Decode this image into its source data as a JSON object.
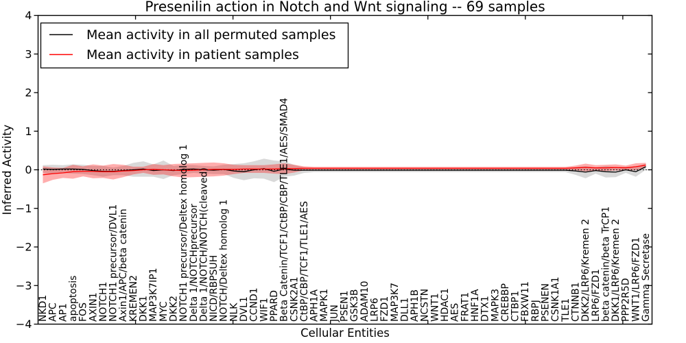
{
  "title": "Presenilin action in Notch and Wnt signaling -- 69 samples",
  "axes": {
    "xlabel": "Cellular Entities",
    "ylabel": "Inferred Activity",
    "ytick_labels": [
      "4",
      "3",
      "2",
      "1",
      "0",
      "−1",
      "−2",
      "−3",
      "−4"
    ],
    "ytick_values": [
      4,
      3,
      2,
      1,
      0,
      -1,
      -2,
      -3,
      -4
    ],
    "xtick_values": [
      10,
      20,
      30,
      40,
      50,
      60
    ]
  },
  "legend": {
    "position": "upper left",
    "entries": [
      {
        "label": "Mean activity in all permuted samples",
        "color": "#000000"
      },
      {
        "label": "Mean activity in patient samples",
        "color": "#ff0000"
      }
    ]
  },
  "colors": {
    "permuted_line": "#000000",
    "permuted_band": "#aaaaaa",
    "patient_line": "#ff0000",
    "patient_band": "#ff0000",
    "zero_line": "#000000",
    "frame": "#000000",
    "background": "#ffffff"
  },
  "chart_data": {
    "type": "line",
    "title": "Presenilin action in Notch and Wnt signaling -- 69 samples",
    "xlabel": "Cellular Entities",
    "ylabel": "Inferred Activity",
    "ylim": [
      -4,
      4
    ],
    "grid": false,
    "zero_reference_line": "dotted",
    "legend_position": "upper left",
    "samples": 69,
    "categories": [
      "NKD1",
      "APC",
      "AP1",
      "apoptosis",
      "FOS",
      "AXIN1",
      "NOTCH1",
      "NOTCH1 precursor/DVL1",
      "Axin1/APC/beta catenin",
      "KREMEN2",
      "DKK1",
      "MAP3K7IP1",
      "MYC",
      "DKK2",
      "NOTCH1 precursor/Deltex homolog 1",
      "Delta 1/NOTCHprecursor",
      "Delta 1/NOTCH/NOTCH(cleaved)",
      "NICD/RBPSUH",
      "NOTCH/Deltex homolog 1",
      "NLK",
      "DVL1",
      "CCND1",
      "WIF1",
      "PPARD",
      "Beta Catenin/TCF1/CtBP/CBP/TLE1/AES/SMAD4",
      "CSNK2A1",
      "CtBP/CBP/TCF1/TLE1/AES",
      "APH1A",
      "MAPK1",
      "JUN",
      "PSEN1",
      "GSK3B",
      "ADAM10",
      "LRP6",
      "FZD1",
      "MAP3K7",
      "DLL1",
      "APH1B",
      "NCSTN",
      "WNT1",
      "HDAC1",
      "AES",
      "FRAT1",
      "HNF1A",
      "DTX1",
      "MAPK3",
      "CREBBP",
      "CTBP1",
      "FBXW11",
      "RBPJ",
      "PSENEN",
      "CSNK1A1",
      "TLE1",
      "CTNNB1",
      "DKK2/LRP6/Kremen 2",
      "LRP6/FZD1",
      "beta catenin/beta TrCP1",
      "DKK1/LRP6/Kremen 2",
      "PPP2R5D",
      "WNT1/LRP6/FZD1",
      "Gamma Secretase"
    ],
    "series": [
      {
        "name": "Mean activity in all permuted samples",
        "color": "#000000",
        "band_color": "#aaaaaa",
        "band_opacity": 0.45,
        "values": [
          0.02,
          0.01,
          0.02,
          0.02,
          0.01,
          -0.02,
          -0.04,
          -0.04,
          -0.02,
          0.0,
          0.02,
          -0.02,
          0.0,
          -0.02,
          0.01,
          0.02,
          0.0,
          -0.01,
          0.01,
          -0.03,
          -0.05,
          0.0,
          0.03,
          -0.04,
          0.02,
          -0.01,
          -0.01,
          -0.01,
          -0.01,
          -0.01,
          -0.01,
          -0.01,
          -0.01,
          -0.01,
          -0.01,
          -0.01,
          -0.01,
          -0.01,
          -0.01,
          -0.01,
          -0.01,
          -0.01,
          -0.01,
          -0.01,
          -0.01,
          -0.01,
          -0.01,
          -0.01,
          -0.01,
          -0.01,
          -0.01,
          -0.01,
          -0.01,
          -0.03,
          -0.06,
          -0.02,
          -0.05,
          -0.06,
          0.0,
          -0.05,
          0.08
        ],
        "std": [
          0.1,
          0.12,
          0.1,
          0.12,
          0.12,
          0.12,
          0.14,
          0.1,
          0.12,
          0.18,
          0.2,
          0.16,
          0.24,
          0.12,
          0.12,
          0.1,
          0.1,
          0.1,
          0.12,
          0.18,
          0.22,
          0.22,
          0.26,
          0.28,
          0.2,
          0.14,
          0.07,
          0.05,
          0.05,
          0.05,
          0.05,
          0.05,
          0.05,
          0.05,
          0.05,
          0.05,
          0.05,
          0.05,
          0.05,
          0.05,
          0.05,
          0.05,
          0.05,
          0.05,
          0.05,
          0.05,
          0.05,
          0.05,
          0.05,
          0.05,
          0.05,
          0.05,
          0.05,
          0.1,
          0.16,
          0.08,
          0.15,
          0.13,
          0.08,
          0.13,
          0.08
        ]
      },
      {
        "name": "Mean activity in patient samples",
        "color": "#ff0000",
        "band_color": "#ff0000",
        "band_opacity": 0.32,
        "values": [
          -0.13,
          -0.1,
          -0.08,
          -0.05,
          -0.04,
          -0.04,
          -0.05,
          -0.05,
          -0.03,
          -0.02,
          0.0,
          0.01,
          0.0,
          -0.01,
          -0.02,
          -0.01,
          0.0,
          0.01,
          0.01,
          0.01,
          0.02,
          0.02,
          0.02,
          0.02,
          0.03,
          0.03,
          0.04,
          0.04,
          0.04,
          0.04,
          0.04,
          0.04,
          0.04,
          0.04,
          0.04,
          0.04,
          0.04,
          0.04,
          0.04,
          0.04,
          0.04,
          0.04,
          0.04,
          0.04,
          0.04,
          0.04,
          0.04,
          0.04,
          0.04,
          0.04,
          0.04,
          0.04,
          0.04,
          0.05,
          0.06,
          0.05,
          0.05,
          0.06,
          0.05,
          0.08,
          0.12
        ],
        "std": [
          0.22,
          0.16,
          0.13,
          0.18,
          0.13,
          0.18,
          0.16,
          0.2,
          0.16,
          0.1,
          0.08,
          0.14,
          0.12,
          0.16,
          0.18,
          0.18,
          0.18,
          0.18,
          0.16,
          0.12,
          0.1,
          0.1,
          0.1,
          0.12,
          0.14,
          0.1,
          0.05,
          0.035,
          0.035,
          0.035,
          0.035,
          0.035,
          0.035,
          0.035,
          0.035,
          0.035,
          0.035,
          0.035,
          0.035,
          0.035,
          0.035,
          0.035,
          0.035,
          0.035,
          0.035,
          0.035,
          0.035,
          0.035,
          0.035,
          0.035,
          0.035,
          0.035,
          0.035,
          0.06,
          0.1,
          0.07,
          0.08,
          0.08,
          0.06,
          0.09,
          0.06
        ]
      }
    ]
  }
}
